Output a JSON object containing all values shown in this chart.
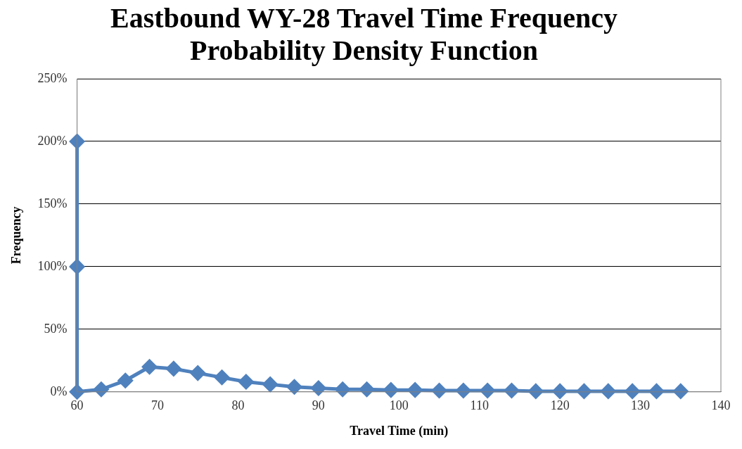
{
  "chart_data": {
    "type": "line",
    "title": "Eastbound WY-28 Travel Time Frequency\nProbability Density Function",
    "xlabel": "Travel Time (min)",
    "ylabel": "Frequency",
    "x": [
      60,
      60,
      60,
      63,
      66,
      69,
      72,
      75,
      78,
      81,
      84,
      87,
      90,
      93,
      96,
      99,
      102,
      105,
      108,
      111,
      114,
      117,
      120,
      123,
      126,
      129,
      132,
      135
    ],
    "series": [
      {
        "color": "#4f81bd",
        "values": [
          200,
          100,
          0,
          2,
          9,
          20,
          18.5,
          15,
          11.5,
          8,
          6,
          4,
          3,
          2,
          2,
          1.5,
          1.5,
          1,
          1,
          1,
          1,
          0.5,
          0.5,
          0.5,
          0.5,
          0.5,
          0.5,
          0.5
        ]
      }
    ],
    "xlim": [
      60,
      140
    ],
    "xticks": [
      60,
      70,
      80,
      90,
      100,
      110,
      120,
      130,
      140
    ],
    "ylim": [
      0,
      250
    ],
    "yticks": [
      {
        "value": 0,
        "label": "0%"
      },
      {
        "value": 50,
        "label": "50%"
      },
      {
        "value": 100,
        "label": "100%"
      },
      {
        "value": 150,
        "label": "150%"
      },
      {
        "value": 200,
        "label": "200%"
      },
      {
        "value": 250,
        "label": "250%"
      }
    ],
    "grid": "y",
    "legend": false,
    "marker": "diamond",
    "line_style": "solid"
  }
}
